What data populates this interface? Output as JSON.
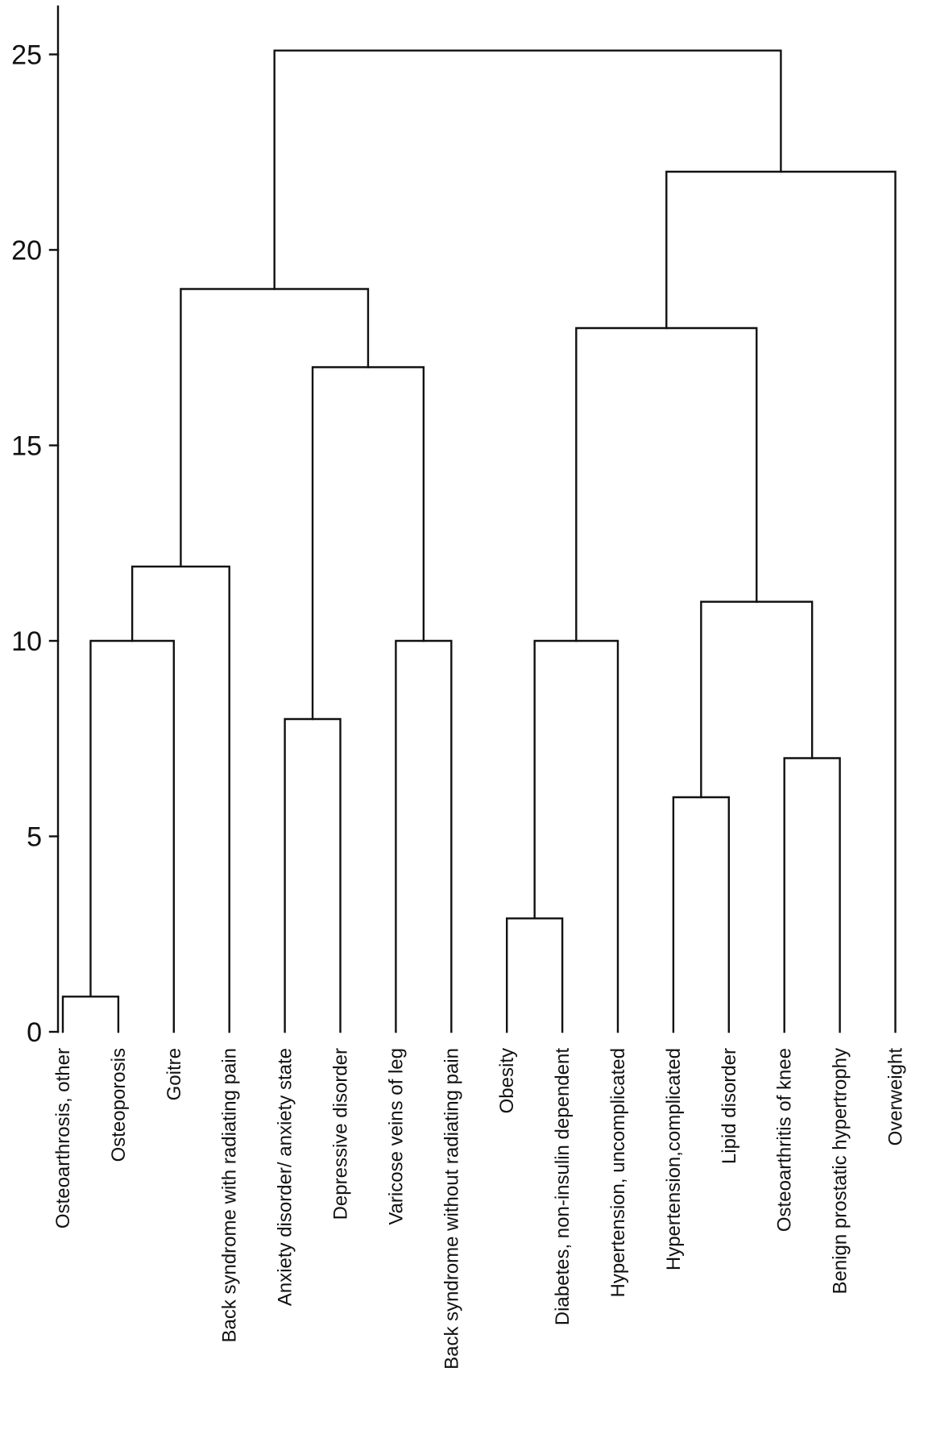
{
  "chart_data": {
    "type": "dendrogram",
    "title": "",
    "xlabel": "",
    "ylabel": "",
    "ylim": [
      0,
      27.5
    ],
    "yticks": [
      0,
      5,
      10,
      15,
      20,
      25
    ],
    "grid": false,
    "leaves": [
      "Osteoarthrosis, other",
      "Osteoporosis",
      "Goitre",
      "Back syndrome with radiating pain",
      "Anxiety disorder/ anxiety state",
      "Depressive disorder",
      "Varicose veins of leg",
      "Back syndrome without radiating pain",
      "Obesity",
      "Diabetes, non-insulin dependent",
      "Hypertension, uncomplicated",
      "Hypertension,complicated",
      "Lipid disorder",
      "Osteoarthritis of knee",
      "Benign prostatic hypertrophy",
      "Overweight"
    ],
    "merges": [
      {
        "id": "m1",
        "left": "L0",
        "right": "L1",
        "height": 0.9
      },
      {
        "id": "m2",
        "left": "m1",
        "right": "L2",
        "height": 10.0
      },
      {
        "id": "m3",
        "left": "m2",
        "right": "L3",
        "height": 11.9
      },
      {
        "id": "m4",
        "left": "L4",
        "right": "L5",
        "height": 8.0
      },
      {
        "id": "m5",
        "left": "L6",
        "right": "L7",
        "height": 10.0
      },
      {
        "id": "m6",
        "left": "m4",
        "right": "m5",
        "height": 17.0
      },
      {
        "id": "m7",
        "left": "m3",
        "right": "m6",
        "height": 19.0
      },
      {
        "id": "m8",
        "left": "L8",
        "right": "L9",
        "height": 2.9
      },
      {
        "id": "m9",
        "left": "m8",
        "right": "L10",
        "height": 10.0
      },
      {
        "id": "m10",
        "left": "L11",
        "right": "L12",
        "height": 6.0
      },
      {
        "id": "m11",
        "left": "L13",
        "right": "L14",
        "height": 7.0
      },
      {
        "id": "m12",
        "left": "m10",
        "right": "m11",
        "height": 11.0
      },
      {
        "id": "m13",
        "left": "m9",
        "right": "m12",
        "height": 18.0
      },
      {
        "id": "m14",
        "left": "m13",
        "right": "L15",
        "height": 22.0
      },
      {
        "id": "m15",
        "left": "m7",
        "right": "m14",
        "height": 25.1
      }
    ]
  }
}
